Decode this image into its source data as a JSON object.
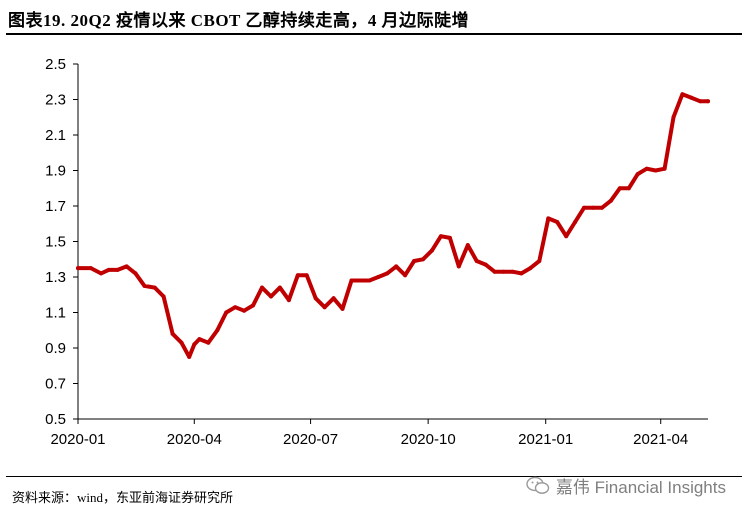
{
  "header": {
    "title": "图表19. 20Q2 疫情以来 CBOT 乙醇持续走高，4 月边际陡增"
  },
  "footer": {
    "source": "资料来源：wind，东亚前海证券研究所",
    "watermark": "嘉伟 Financial Insights",
    "watermark_icon": "wechat-icon"
  },
  "chart_data": {
    "type": "line",
    "title": "",
    "xlabel": "",
    "ylabel": "",
    "ylim": [
      0.5,
      2.5
    ],
    "xlim": [
      "2020-01-01",
      "2021-05-08"
    ],
    "grid": false,
    "legend": "none",
    "line_color": "#c00000",
    "yticks": [
      "2.5",
      "2.3",
      "2.1",
      "1.9",
      "1.7",
      "1.5",
      "1.3",
      "1.1",
      "0.9",
      "0.7",
      "0.5"
    ],
    "yticks_values": [
      2.5,
      2.3,
      2.1,
      1.9,
      1.7,
      1.5,
      1.3,
      1.1,
      0.9,
      0.7,
      0.5
    ],
    "xticks": [
      "2020-01",
      "2020-04",
      "2020-07",
      "2020-10",
      "2021-01",
      "2021-04"
    ],
    "xticks_values": [
      "2020-01-01",
      "2020-04-01",
      "2020-07-01",
      "2020-10-01",
      "2021-01-01",
      "2021-04-01"
    ],
    "series": [
      {
        "x": [
          "2020-01-01",
          "2020-01-11",
          "2020-01-19",
          "2020-01-25",
          "2020-02-01",
          "2020-02-08",
          "2020-02-15",
          "2020-02-22",
          "2020-03-01",
          "2020-03-08",
          "2020-03-15",
          "2020-03-22",
          "2020-03-28",
          "2020-04-01",
          "2020-04-05",
          "2020-04-12",
          "2020-04-19",
          "2020-04-26",
          "2020-05-03",
          "2020-05-10",
          "2020-05-17",
          "2020-05-24",
          "2020-05-31",
          "2020-06-07",
          "2020-06-14",
          "2020-06-21",
          "2020-06-28",
          "2020-07-05",
          "2020-07-12",
          "2020-07-19",
          "2020-07-26",
          "2020-08-02",
          "2020-08-09",
          "2020-08-16",
          "2020-08-23",
          "2020-08-30",
          "2020-09-06",
          "2020-09-13",
          "2020-09-20",
          "2020-09-27",
          "2020-10-04",
          "2020-10-11",
          "2020-10-18",
          "2020-10-25",
          "2020-11-01",
          "2020-11-08",
          "2020-11-15",
          "2020-11-22",
          "2020-11-29",
          "2020-12-06",
          "2020-12-13",
          "2020-12-20",
          "2020-12-27",
          "2021-01-03",
          "2021-01-10",
          "2021-01-17",
          "2021-01-24",
          "2021-01-31",
          "2021-02-07",
          "2021-02-14",
          "2021-02-21",
          "2021-02-28",
          "2021-03-07",
          "2021-03-14",
          "2021-03-21",
          "2021-03-28",
          "2021-04-04",
          "2021-04-11",
          "2021-04-18",
          "2021-04-25",
          "2021-05-02",
          "2021-05-08"
        ],
        "values": [
          1.35,
          1.35,
          1.32,
          1.34,
          1.34,
          1.36,
          1.32,
          1.25,
          1.24,
          1.19,
          0.98,
          0.93,
          0.85,
          0.92,
          0.95,
          0.93,
          1.0,
          1.1,
          1.13,
          1.11,
          1.14,
          1.24,
          1.19,
          1.24,
          1.17,
          1.31,
          1.31,
          1.18,
          1.13,
          1.18,
          1.12,
          1.28,
          1.28,
          1.28,
          1.3,
          1.32,
          1.36,
          1.31,
          1.39,
          1.4,
          1.45,
          1.53,
          1.52,
          1.36,
          1.48,
          1.39,
          1.37,
          1.33,
          1.33,
          1.33,
          1.32,
          1.35,
          1.39,
          1.63,
          1.61,
          1.53,
          1.61,
          1.69,
          1.69,
          1.69,
          1.73,
          1.8,
          1.8,
          1.88,
          1.91,
          1.9,
          1.91,
          2.2,
          2.33,
          2.31,
          2.29,
          2.29
        ]
      }
    ]
  }
}
